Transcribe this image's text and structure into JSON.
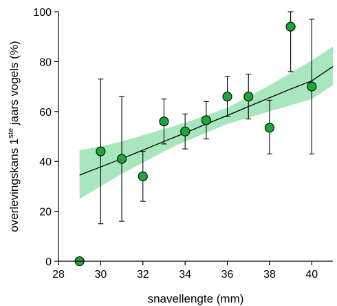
{
  "chart_data": {
    "type": "scatter",
    "xlabel": "snavellengte (mm)",
    "ylabel": {
      "before": "overlevingskans 1",
      "superscript": "ste",
      "after": " jaars vogels (%)"
    },
    "xlim": [
      28,
      41
    ],
    "ylim": [
      0,
      100
    ],
    "xticks": [
      28,
      30,
      32,
      34,
      36,
      38,
      40
    ],
    "yticks": [
      0,
      20,
      40,
      60,
      80,
      100
    ],
    "grid": false,
    "legend": "none",
    "points": [
      {
        "x": 29,
        "y": 0,
        "lower": 0,
        "upper": 0
      },
      {
        "x": 30,
        "y": 44,
        "lower": 15,
        "upper": 73
      },
      {
        "x": 31,
        "y": 41,
        "lower": 16,
        "upper": 66
      },
      {
        "x": 32,
        "y": 34,
        "lower": 24,
        "upper": 44
      },
      {
        "x": 33,
        "y": 56,
        "lower": 47,
        "upper": 65
      },
      {
        "x": 34,
        "y": 52,
        "lower": 45,
        "upper": 59
      },
      {
        "x": 35,
        "y": 56.5,
        "lower": 49,
        "upper": 64
      },
      {
        "x": 36,
        "y": 66,
        "lower": 58,
        "upper": 74
      },
      {
        "x": 37,
        "y": 66,
        "lower": 57,
        "upper": 75
      },
      {
        "x": 38,
        "y": 53.5,
        "lower": 43,
        "upper": 64.5
      },
      {
        "x": 39,
        "y": 94,
        "lower": 76,
        "upper": 100
      },
      {
        "x": 40,
        "y": 70,
        "lower": 43,
        "upper": 97
      }
    ],
    "fit_line": {
      "x": [
        29,
        30,
        31,
        32,
        33,
        34,
        35,
        36,
        37,
        38,
        39,
        40,
        41
      ],
      "y": [
        34.5,
        37.8,
        41.1,
        44.5,
        48.0,
        51.4,
        55.0,
        58.4,
        62.0,
        65.5,
        69.0,
        72.3,
        78.0
      ]
    },
    "confidence_band": {
      "x": [
        29,
        30,
        31,
        32,
        33,
        34,
        35,
        36,
        37,
        38,
        39,
        40,
        41
      ],
      "lower": [
        25,
        30.0,
        35.0,
        39.5,
        44.0,
        48.0,
        51.5,
        55.0,
        57.5,
        60.0,
        62.5,
        65.0,
        70.5
      ],
      "upper": [
        44.5,
        46.0,
        48.0,
        50.5,
        53.0,
        55.5,
        58.5,
        61.5,
        66.0,
        70.5,
        75.5,
        80.5,
        86
      ]
    },
    "colors": {
      "marker_fill": "#1fa53a",
      "marker_edge": "#000000",
      "band_fill": "#a8e6bd",
      "line": "#000000"
    }
  }
}
